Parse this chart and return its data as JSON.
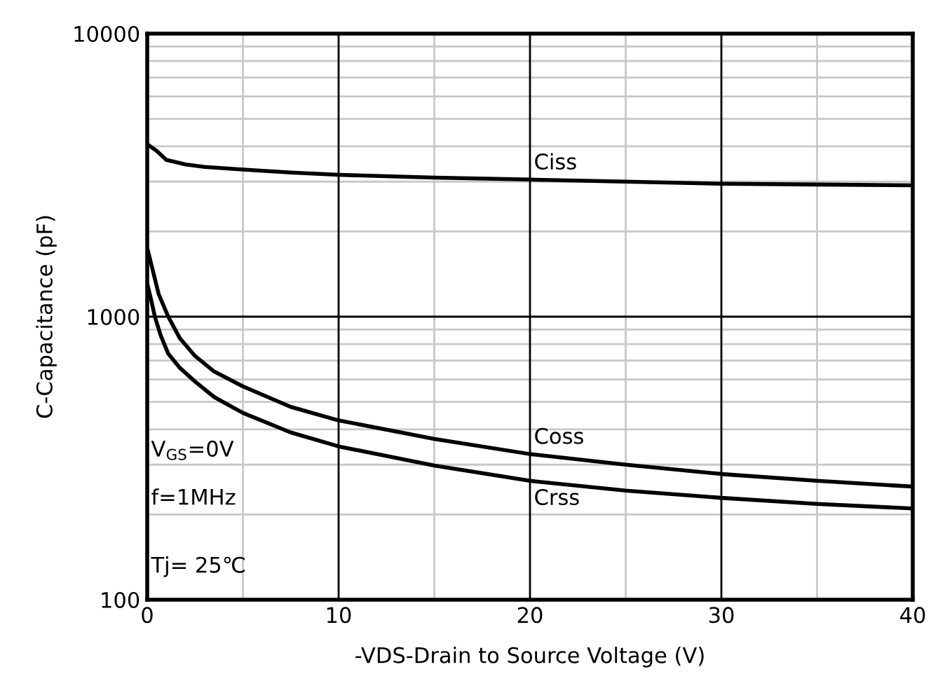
{
  "chart_data": {
    "type": "line",
    "xlabel": "-VDS-Drain to Source Voltage (V)",
    "ylabel": "C-Capacitance (pF)",
    "log": "y",
    "grid": true,
    "legend": false,
    "marker": "none",
    "line_style": "solid",
    "xlim": [
      0,
      40
    ],
    "xticks": [
      0,
      10,
      20,
      30,
      40
    ],
    "ylim": [
      100,
      10000
    ],
    "yticks": [
      100,
      1000,
      10000
    ],
    "series": [
      {
        "name": "Ciss",
        "color": "#000000",
        "x": [
          0,
          0.5,
          1,
          2,
          3,
          5,
          7.5,
          10,
          15,
          20,
          25,
          30,
          35,
          40
        ],
        "values": [
          4070,
          3850,
          3580,
          3450,
          3380,
          3310,
          3230,
          3170,
          3100,
          3050,
          3000,
          2950,
          2930,
          2910
        ]
      },
      {
        "name": "Coss",
        "color": "#000000",
        "x": [
          0,
          0.3,
          0.6,
          1.1,
          1.7,
          2.5,
          3.5,
          5,
          7.5,
          10,
          15,
          20,
          25,
          30,
          35,
          40
        ],
        "values": [
          1750,
          1450,
          1200,
          1000,
          840,
          726,
          640,
          567,
          480,
          430,
          370,
          327,
          300,
          278,
          263,
          251
        ]
      },
      {
        "name": "Crss",
        "color": "#000000",
        "x": [
          0,
          0.2,
          0.4,
          0.7,
          1.1,
          1.7,
          2.5,
          3.5,
          5,
          7.5,
          10,
          15,
          20,
          25,
          30,
          35,
          40
        ],
        "values": [
          1310,
          1150,
          1000,
          860,
          740,
          660,
          590,
          520,
          457,
          390,
          348,
          298,
          263,
          243,
          229,
          218,
          210
        ]
      }
    ],
    "annotations": [
      "V$_{GS}$=0V",
      "f=1MHz",
      "Tj= 25℃"
    ]
  }
}
